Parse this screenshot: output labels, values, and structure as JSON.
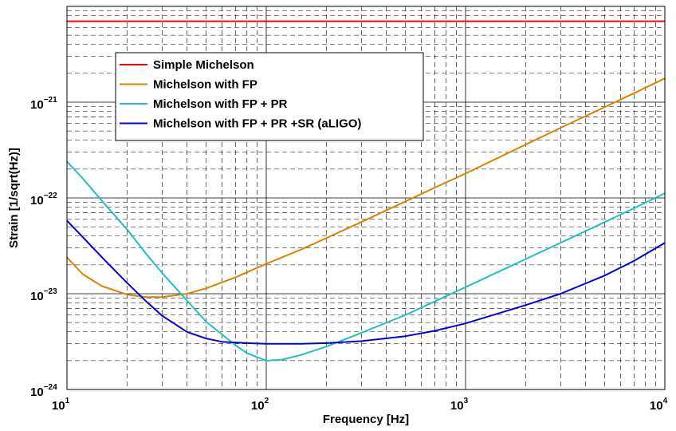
{
  "chart_data": {
    "type": "line",
    "xlabel": "Frequency [Hz]",
    "ylabel": "Strain [1/sqrt(Hz)]",
    "xscale": "log",
    "yscale": "log",
    "xlim": [
      10,
      10000
    ],
    "ylim": [
      1e-24,
      1e-20
    ],
    "grid": true,
    "legend_position": "top-left",
    "x_ticks": [
      {
        "base": "10",
        "exp": "1"
      },
      {
        "base": "10",
        "exp": "2"
      },
      {
        "base": "10",
        "exp": "3"
      },
      {
        "base": "10",
        "exp": "4"
      }
    ],
    "y_ticks": [
      {
        "base": "10",
        "exp": "−24"
      },
      {
        "base": "10",
        "exp": "−23"
      },
      {
        "base": "10",
        "exp": "−22"
      },
      {
        "base": "10",
        "exp": "−21"
      }
    ],
    "series": [
      {
        "name": "Simple Michelson",
        "color": "#ff0000",
        "x": [
          10,
          10000
        ],
        "y": [
          7e-21,
          7e-21
        ]
      },
      {
        "name": "Michelson with FP",
        "color": "#dd8000",
        "x": [
          10,
          12,
          15,
          20,
          25,
          30,
          40,
          50,
          70,
          100,
          150,
          200,
          300,
          500,
          700,
          1000,
          2000,
          3000,
          5000,
          7000,
          10000
        ],
        "y": [
          2.4e-23,
          1.6e-23,
          1.2e-23,
          9.8e-24,
          9.2e-24,
          9.2e-24,
          1e-23,
          1.14e-23,
          1.48e-23,
          2.05e-23,
          2.9e-23,
          3.8e-23,
          5.6e-23,
          9.2e-23,
          1.28e-22,
          1.8e-22,
          3.6e-22,
          5.4e-22,
          8.9e-22,
          1.24e-21,
          1.77e-21
        ]
      },
      {
        "name": "Michelson with FP + PR",
        "color": "#20c0c0",
        "x": [
          10,
          12,
          15,
          20,
          25,
          30,
          40,
          50,
          70,
          80,
          100,
          120,
          150,
          200,
          300,
          500,
          700,
          1000,
          2000,
          3000,
          5000,
          7000,
          10000
        ],
        "y": [
          2.4e-22,
          1.6e-22,
          9.3e-23,
          4.7e-23,
          2.6e-23,
          1.65e-23,
          8.5e-24,
          5.1e-24,
          2.9e-24,
          2.4e-24,
          2e-24,
          2.05e-24,
          2.3e-24,
          2.8e-24,
          3.9e-24,
          6e-24,
          8.3e-24,
          1.17e-23,
          2.3e-23,
          3.4e-23,
          5.6e-23,
          7.8e-23,
          1.12e-22
        ]
      },
      {
        "name": "Michelson with FP + PR +SR (aLIGO)",
        "color": "#0000dd",
        "x": [
          10,
          12,
          15,
          20,
          25,
          30,
          40,
          50,
          60,
          80,
          100,
          150,
          200,
          300,
          500,
          700,
          1000,
          2000,
          3000,
          5000,
          7000,
          10000
        ],
        "y": [
          5.8e-23,
          3.9e-23,
          2.4e-23,
          1.3e-23,
          8.3e-24,
          5.9e-24,
          4e-24,
          3.4e-24,
          3.15e-24,
          3.05e-24,
          3e-24,
          3e-24,
          3.05e-24,
          3.2e-24,
          3.6e-24,
          4.1e-24,
          4.9e-24,
          7.6e-24,
          1e-23,
          1.55e-23,
          2.2e-23,
          3.4e-23
        ]
      }
    ]
  }
}
